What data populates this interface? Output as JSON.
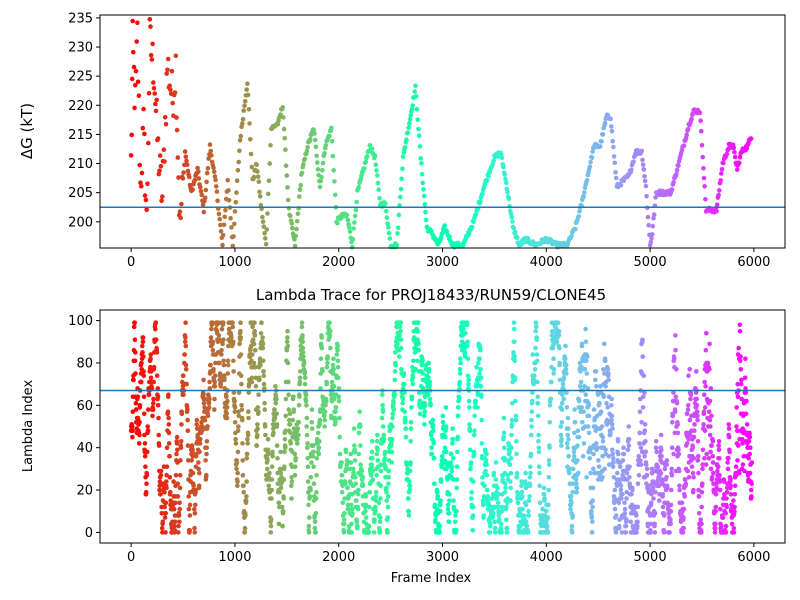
{
  "chart_data": [
    {
      "type": "scatter",
      "title": "",
      "xlabel": "",
      "ylabel": "ΔG (kT)",
      "xlim": [
        -300,
        6300
      ],
      "ylim": [
        195.5,
        235.5
      ],
      "x_ticks": [
        0,
        1000,
        2000,
        3000,
        4000,
        5000,
        6000
      ],
      "x_tick_labels": [
        "0",
        "1000",
        "2000",
        "3000",
        "4000",
        "5000",
        "6000"
      ],
      "y_ticks": [
        200,
        205,
        210,
        215,
        220,
        225,
        230,
        235
      ],
      "y_tick_labels": [
        "200",
        "205",
        "210",
        "215",
        "220",
        "225",
        "230",
        "235"
      ],
      "hline": 202.5,
      "hline_color": "#1f77b4",
      "colormap": "rainbow",
      "grid": false,
      "legend": "none",
      "anchors": [
        [
          0,
          210
        ],
        [
          15,
          230
        ],
        [
          40,
          220
        ],
        [
          60,
          232
        ],
        [
          90,
          206
        ],
        [
          120,
          216
        ],
        [
          150,
          200
        ],
        [
          180,
          231
        ],
        [
          220,
          226
        ],
        [
          260,
          212
        ],
        [
          300,
          204
        ],
        [
          350,
          227
        ],
        [
          400,
          221
        ],
        [
          430,
          227
        ],
        [
          470,
          199
        ],
        [
          520,
          212
        ],
        [
          580,
          205
        ],
        [
          640,
          209
        ],
        [
          700,
          202
        ],
        [
          760,
          213
        ],
        [
          820,
          206
        ],
        [
          880,
          196
        ],
        [
          930,
          207
        ],
        [
          980,
          196
        ],
        [
          1050,
          214
        ],
        [
          1120,
          224
        ],
        [
          1170,
          207
        ],
        [
          1210,
          210
        ],
        [
          1250,
          203
        ],
        [
          1300,
          196
        ],
        [
          1350,
          216
        ],
        [
          1420,
          217
        ],
        [
          1460,
          220
        ],
        [
          1520,
          202
        ],
        [
          1580,
          196
        ],
        [
          1640,
          208
        ],
        [
          1700,
          213
        ],
        [
          1760,
          216
        ],
        [
          1820,
          206
        ],
        [
          1870,
          213
        ],
        [
          1930,
          216
        ],
        [
          1980,
          200
        ],
        [
          2030,
          201
        ],
        [
          2080,
          201
        ],
        [
          2130,
          196
        ],
        [
          2180,
          205
        ],
        [
          2240,
          209
        ],
        [
          2300,
          213
        ],
        [
          2350,
          211
        ],
        [
          2400,
          203
        ],
        [
          2450,
          203
        ],
        [
          2500,
          196
        ],
        [
          2560,
          196
        ],
        [
          2620,
          211
        ],
        [
          2680,
          217
        ],
        [
          2740,
          223
        ],
        [
          2790,
          211
        ],
        [
          2850,
          199
        ],
        [
          2900,
          198
        ],
        [
          2960,
          196
        ],
        [
          3020,
          199
        ],
        [
          3100,
          196
        ],
        [
          3200,
          196
        ],
        [
          3300,
          200
        ],
        [
          3400,
          206
        ],
        [
          3500,
          211
        ],
        [
          3560,
          212
        ],
        [
          3620,
          206
        ],
        [
          3680,
          199
        ],
        [
          3740,
          196
        ],
        [
          3800,
          197
        ],
        [
          3900,
          196
        ],
        [
          4000,
          197
        ],
        [
          4100,
          196
        ],
        [
          4200,
          196
        ],
        [
          4280,
          199
        ],
        [
          4340,
          203
        ],
        [
          4400,
          208
        ],
        [
          4460,
          213
        ],
        [
          4520,
          213
        ],
        [
          4580,
          218
        ],
        [
          4620,
          218
        ],
        [
          4680,
          206
        ],
        [
          4740,
          207
        ],
        [
          4800,
          208
        ],
        [
          4860,
          212
        ],
        [
          4920,
          212
        ],
        [
          4960,
          206
        ],
        [
          5000,
          196
        ],
        [
          5020,
          198
        ],
        [
          5060,
          205
        ],
        [
          5120,
          205
        ],
        [
          5200,
          205
        ],
        [
          5260,
          209
        ],
        [
          5320,
          213
        ],
        [
          5380,
          217
        ],
        [
          5420,
          219
        ],
        [
          5480,
          219
        ],
        [
          5540,
          202
        ],
        [
          5580,
          202
        ],
        [
          5640,
          202
        ],
        [
          5700,
          210
        ],
        [
          5760,
          213
        ],
        [
          5800,
          213
        ],
        [
          5840,
          209
        ],
        [
          5880,
          212
        ],
        [
          5940,
          213
        ],
        [
          5980,
          215
        ]
      ]
    },
    {
      "type": "scatter",
      "title": "Lambda Trace for PROJ18433/RUN59/CLONE45",
      "xlabel": "Frame Index",
      "ylabel": "Lambda Index",
      "xlim": [
        -300,
        6300
      ],
      "ylim": [
        -5,
        105
      ],
      "x_ticks": [
        0,
        1000,
        2000,
        3000,
        4000,
        5000,
        6000
      ],
      "x_tick_labels": [
        "0",
        "1000",
        "2000",
        "3000",
        "4000",
        "5000",
        "6000"
      ],
      "y_ticks": [
        0,
        20,
        40,
        60,
        80,
        100
      ],
      "y_tick_labels": [
        "0",
        "20",
        "40",
        "60",
        "80",
        "100"
      ],
      "hline": 67,
      "hline_color": "#1f77b4",
      "colormap": "rainbow",
      "grid": false,
      "legend": "none",
      "point_count": 3000,
      "lambda_range": [
        0,
        99
      ]
    }
  ]
}
